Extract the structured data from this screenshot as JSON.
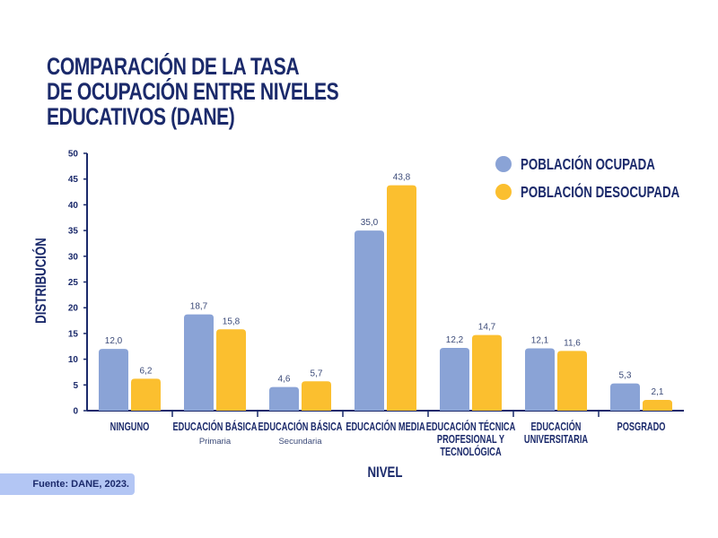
{
  "chart_data": {
    "type": "bar",
    "title": "COMPARACIÓN DE LA TASA\nDE OCUPACIÓN ENTRE NIVELES\nEDUCATIVOS (DANE)",
    "xlabel": "NIVEL",
    "ylabel": "DISTRIBUCIÓN",
    "ylim": [
      0,
      50
    ],
    "yticks": [
      "0",
      "5",
      "10",
      "15",
      "20",
      "25",
      "30",
      "35",
      "40",
      "45",
      "50"
    ],
    "grid": false,
    "legend_position": "top-right",
    "categories": [
      {
        "label": "NINGUNO",
        "sub": ""
      },
      {
        "label": "EDUCACIÓN BÁSICA",
        "sub": "Primaria"
      },
      {
        "label": "EDUCACIÓN BÁSICA",
        "sub": "Secundaria"
      },
      {
        "label": "EDUCACIÓN MEDIA",
        "sub": ""
      },
      {
        "label": "EDUCACIÓN TÉCNICA\nPROFESIONAL Y\nTECNOLÓGICA",
        "sub": ""
      },
      {
        "label": "EDUCACIÓN\nUNIVERSITARIA",
        "sub": ""
      },
      {
        "label": "POSGRADO",
        "sub": ""
      }
    ],
    "series": [
      {
        "name": "POBLACIÓN OCUPADA",
        "color": "#8aa3d6",
        "values": [
          12.0,
          18.7,
          4.6,
          35.0,
          12.2,
          12.1,
          5.3
        ],
        "labels": [
          "12,0",
          "18,7",
          "4,6",
          "35,0",
          "12,2",
          "12,1",
          "5,3"
        ]
      },
      {
        "name": "POBLACIÓN DESOCUPADA",
        "color": "#fbbf2f",
        "values": [
          6.2,
          15.8,
          5.7,
          43.8,
          14.7,
          11.6,
          2.1
        ],
        "labels": [
          "6,2",
          "15,8",
          "5,7",
          "43,8",
          "14,7",
          "11,6",
          "2,1"
        ]
      }
    ]
  },
  "source": "Fuente: DANE, 2023.",
  "colors": {
    "text": "#1b2a6b",
    "source_bg": "#b3c6f4"
  }
}
